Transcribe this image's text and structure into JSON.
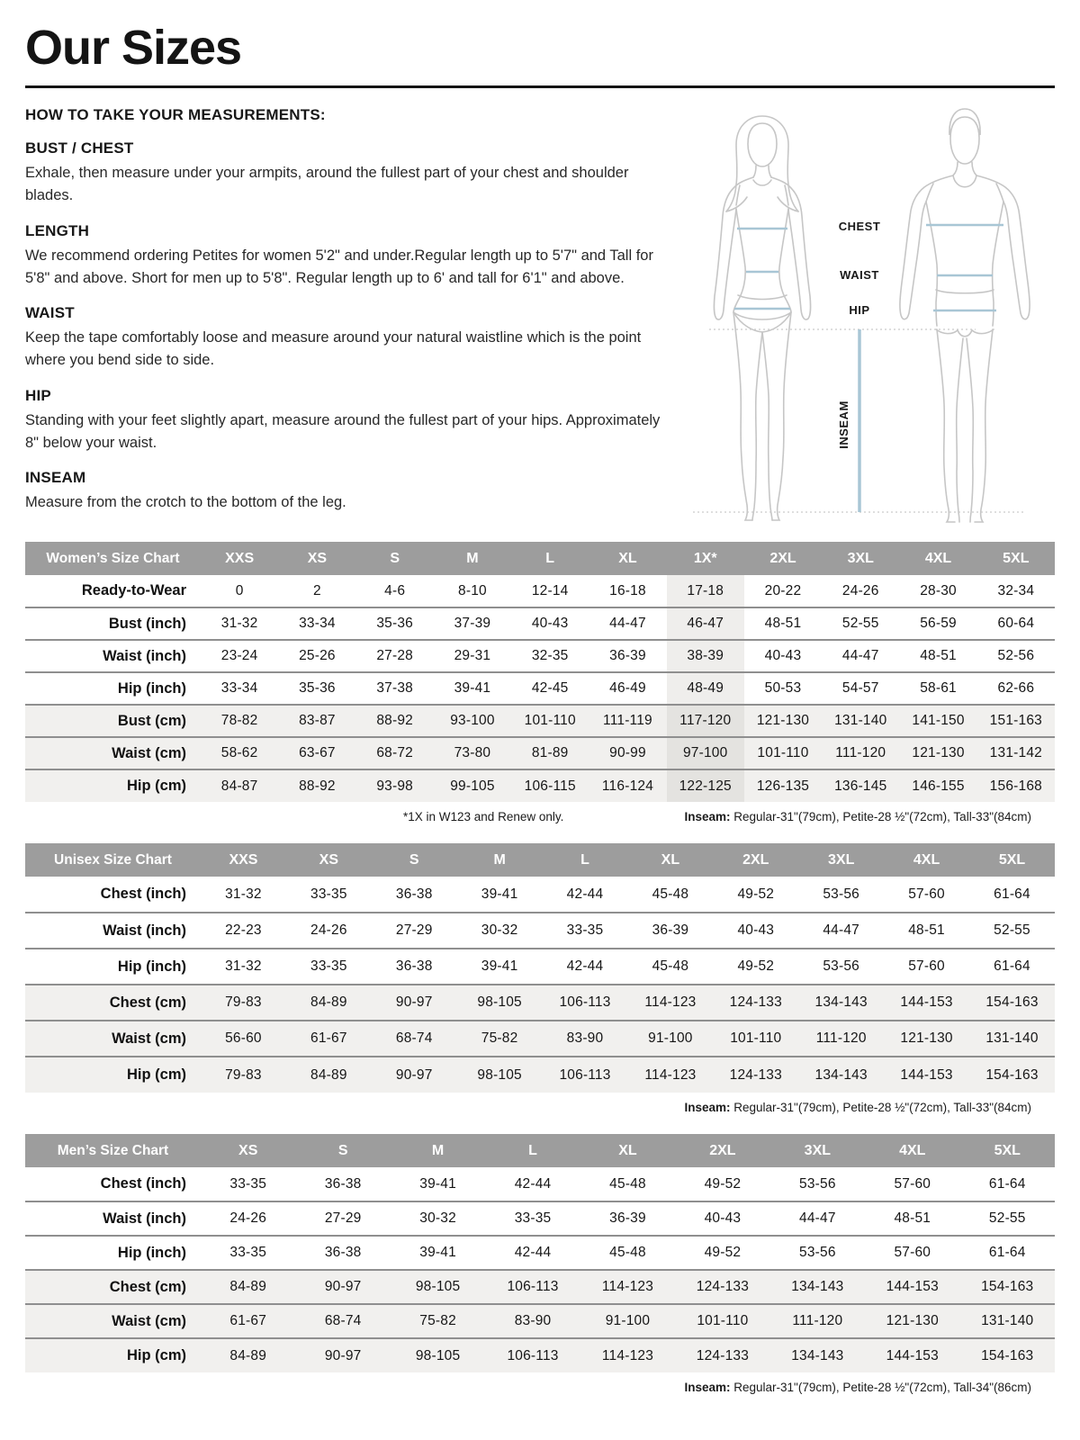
{
  "page": {
    "title": "Our Sizes"
  },
  "colors": {
    "accent_line": "#a8c6d5",
    "table_header_bg": "#9d9d9d",
    "shaded_row_bg": "#f1f0ee",
    "highlight_col_bg": "#efeeec"
  },
  "instructions": {
    "heading": "HOW TO TAKE YOUR MEASUREMENTS:",
    "sections": [
      {
        "title": "BUST / CHEST",
        "body": "Exhale, then measure under your armpits, around the fullest part of your chest and shoulder blades."
      },
      {
        "title": "LENGTH",
        "body": "We recommend ordering Petites for women 5'2\" and under.Regular length up to 5'7\" and Tall for 5'8\" and above. Short for men up to 5'8\". Regular length up to 6' and tall for 6'1\" and above."
      },
      {
        "title": "WAIST",
        "body": "Keep the tape comfortably loose and measure around your natural waistline which is the point where you bend side to side."
      },
      {
        "title": "HIP",
        "body": "Standing with your feet slightly apart, measure around the fullest part of your hips. Approximately 8\" below your waist."
      },
      {
        "title": "INSEAM",
        "body": "Measure from the crotch to the bottom of the leg."
      }
    ]
  },
  "diagram": {
    "accent_line_color": "#a8c6d5",
    "labels": {
      "chest": "CHEST",
      "waist": "WAIST",
      "hip": "HIP",
      "inseam": "INSEAM"
    }
  },
  "tables": [
    {
      "title": "Women’s Size Chart",
      "columns": [
        "XXS",
        "XS",
        "S",
        "M",
        "L",
        "XL",
        "1X*",
        "2XL",
        "3XL",
        "4XL",
        "5XL"
      ],
      "highlight_column": 6,
      "rows": [
        {
          "label": "Ready-to-Wear",
          "shaded": false,
          "values": [
            "0",
            "2",
            "4-6",
            "8-10",
            "12-14",
            "16-18",
            "17-18",
            "20-22",
            "24-26",
            "28-30",
            "32-34"
          ]
        },
        {
          "label": "Bust (inch)",
          "shaded": false,
          "values": [
            "31-32",
            "33-34",
            "35-36",
            "37-39",
            "40-43",
            "44-47",
            "46-47",
            "48-51",
            "52-55",
            "56-59",
            "60-64"
          ]
        },
        {
          "label": "Waist (inch)",
          "shaded": false,
          "values": [
            "23-24",
            "25-26",
            "27-28",
            "29-31",
            "32-35",
            "36-39",
            "38-39",
            "40-43",
            "44-47",
            "48-51",
            "52-56"
          ]
        },
        {
          "label": "Hip (inch)",
          "shaded": false,
          "values": [
            "33-34",
            "35-36",
            "37-38",
            "39-41",
            "42-45",
            "46-49",
            "48-49",
            "50-53",
            "54-57",
            "58-61",
            "62-66"
          ]
        },
        {
          "label": "Bust (cm)",
          "shaded": true,
          "values": [
            "78-82",
            "83-87",
            "88-92",
            "93-100",
            "101-110",
            "111-119",
            "117-120",
            "121-130",
            "131-140",
            "141-150",
            "151-163"
          ]
        },
        {
          "label": "Waist (cm)",
          "shaded": true,
          "values": [
            "58-62",
            "63-67",
            "68-72",
            "73-80",
            "81-89",
            "90-99",
            "97-100",
            "101-110",
            "111-120",
            "121-130",
            "131-142"
          ]
        },
        {
          "label": "Hip (cm)",
          "shaded": true,
          "values": [
            "84-87",
            "88-92",
            "93-98",
            "99-105",
            "106-115",
            "116-124",
            "122-125",
            "126-135",
            "136-145",
            "146-155",
            "156-168"
          ]
        }
      ],
      "footnote_left": "*1X in W123 and Renew only.",
      "footnote_right_label": "Inseam:",
      "footnote_right": " Regular-31\"(79cm), Petite-28 ½\"(72cm), Tall-33\"(84cm)"
    },
    {
      "title": "Unisex Size Chart",
      "columns": [
        "XXS",
        "XS",
        "S",
        "M",
        "L",
        "XL",
        "2XL",
        "3XL",
        "4XL",
        "5XL"
      ],
      "rows": [
        {
          "label": "Chest (inch)",
          "shaded": false,
          "values": [
            "31-32",
            "33-35",
            "36-38",
            "39-41",
            "42-44",
            "45-48",
            "49-52",
            "53-56",
            "57-60",
            "61-64"
          ]
        },
        {
          "label": "Waist (inch)",
          "shaded": false,
          "values": [
            "22-23",
            "24-26",
            "27-29",
            "30-32",
            "33-35",
            "36-39",
            "40-43",
            "44-47",
            "48-51",
            "52-55"
          ]
        },
        {
          "label": "Hip (inch)",
          "shaded": false,
          "values": [
            "31-32",
            "33-35",
            "36-38",
            "39-41",
            "42-44",
            "45-48",
            "49-52",
            "53-56",
            "57-60",
            "61-64"
          ]
        },
        {
          "label": "Chest (cm)",
          "shaded": true,
          "values": [
            "79-83",
            "84-89",
            "90-97",
            "98-105",
            "106-113",
            "114-123",
            "124-133",
            "134-143",
            "144-153",
            "154-163"
          ]
        },
        {
          "label": "Waist (cm)",
          "shaded": true,
          "values": [
            "56-60",
            "61-67",
            "68-74",
            "75-82",
            "83-90",
            "91-100",
            "101-110",
            "111-120",
            "121-130",
            "131-140"
          ]
        },
        {
          "label": "Hip (cm)",
          "shaded": true,
          "values": [
            "79-83",
            "84-89",
            "90-97",
            "98-105",
            "106-113",
            "114-123",
            "124-133",
            "134-143",
            "144-153",
            "154-163"
          ]
        }
      ],
      "footnote_right_label": "Inseam:",
      "footnote_right": " Regular-31\"(79cm), Petite-28 ½\"(72cm), Tall-33\"(84cm)"
    },
    {
      "title": "Men’s Size Chart",
      "columns": [
        "XS",
        "S",
        "M",
        "L",
        "XL",
        "2XL",
        "3XL",
        "4XL",
        "5XL"
      ],
      "rows": [
        {
          "label": "Chest (inch)",
          "shaded": false,
          "values": [
            "33-35",
            "36-38",
            "39-41",
            "42-44",
            "45-48",
            "49-52",
            "53-56",
            "57-60",
            "61-64"
          ]
        },
        {
          "label": "Waist (inch)",
          "shaded": false,
          "values": [
            "24-26",
            "27-29",
            "30-32",
            "33-35",
            "36-39",
            "40-43",
            "44-47",
            "48-51",
            "52-55"
          ]
        },
        {
          "label": "Hip (inch)",
          "shaded": false,
          "values": [
            "33-35",
            "36-38",
            "39-41",
            "42-44",
            "45-48",
            "49-52",
            "53-56",
            "57-60",
            "61-64"
          ]
        },
        {
          "label": "Chest (cm)",
          "shaded": true,
          "values": [
            "84-89",
            "90-97",
            "98-105",
            "106-113",
            "114-123",
            "124-133",
            "134-143",
            "144-153",
            "154-163"
          ]
        },
        {
          "label": "Waist (cm)",
          "shaded": true,
          "values": [
            "61-67",
            "68-74",
            "75-82",
            "83-90",
            "91-100",
            "101-110",
            "111-120",
            "121-130",
            "131-140"
          ]
        },
        {
          "label": "Hip (cm)",
          "shaded": true,
          "values": [
            "84-89",
            "90-97",
            "98-105",
            "106-113",
            "114-123",
            "124-133",
            "134-143",
            "144-153",
            "154-163"
          ]
        }
      ],
      "footnote_right_label": "Inseam:",
      "footnote_right": " Regular-31\"(79cm), Petite-28 ½\"(72cm), Tall-34\"(86cm)"
    }
  ]
}
